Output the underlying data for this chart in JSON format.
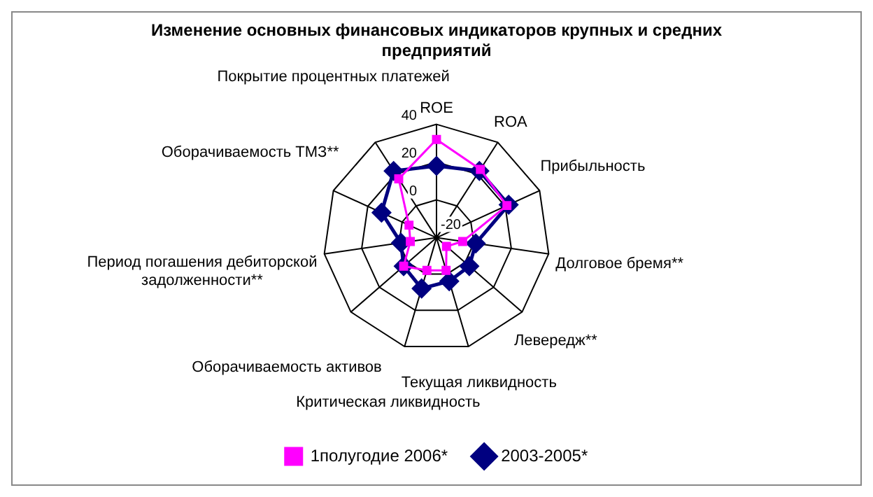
{
  "chart_data": {
    "type": "radar",
    "title": "Изменение основных финансовых индикаторов крупных и средних предприятий",
    "categories": [
      "ROE",
      "ROA",
      "Прибыльность",
      "Долговое бремя**",
      "Левередж**",
      "Текущая ликвидность",
      "Критическая ликвидность",
      "Оборачиваемость активов",
      "Период погашения дебиторской задолженности**",
      "Оборачиваемость ТМЗ**",
      "Покрытие процентных платежей"
    ],
    "series": [
      {
        "name": "2003-2005*",
        "color": "#000080",
        "marker": "diamond",
        "values": [
          18,
          22,
          22,
          1,
          3,
          4,
          8,
          3,
          -1,
          12,
          22
        ]
      },
      {
        "name": "1полугодие 2006*",
        "color": "#ff00ff",
        "marker": "square",
        "values": [
          32,
          23,
          21,
          -6,
          -13,
          -2,
          -2,
          3,
          -6,
          -4,
          17
        ]
      }
    ],
    "ylim": [
      -20,
      40
    ],
    "yticks": [
      -20,
      0,
      20,
      40
    ],
    "grid": true,
    "legend": "bottom"
  }
}
